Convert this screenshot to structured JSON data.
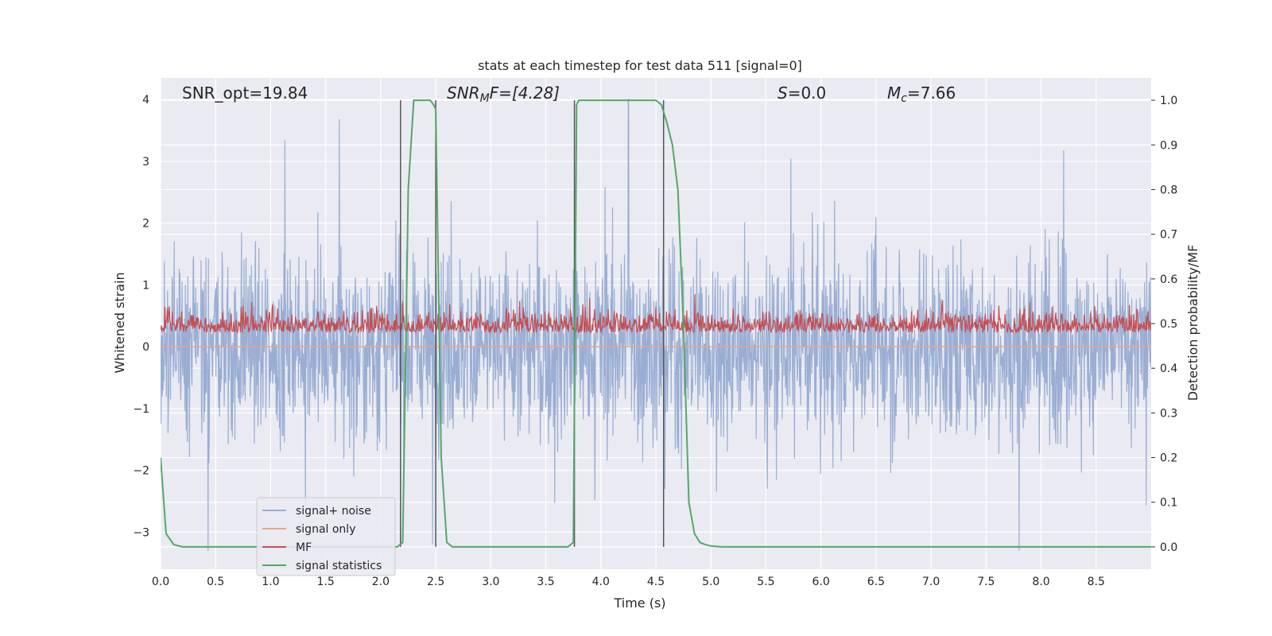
{
  "chart_data": {
    "type": "line",
    "title": "stats at each timestep for test data 511 [signal=0]",
    "xlabel": "Time (s)",
    "ylabel_left": "Whitened strain",
    "ylabel_right": "Detection probability/MF",
    "xlim": [
      0.0,
      9.0
    ],
    "ylim_left": [
      -3.6,
      4.35
    ],
    "ylim_right": [
      -0.05,
      1.05
    ],
    "x_ticks": [
      "0.0",
      "0.5",
      "1.0",
      "1.5",
      "2.0",
      "2.5",
      "3.0",
      "3.5",
      "4.0",
      "4.5",
      "5.0",
      "5.5",
      "6.0",
      "6.5",
      "7.0",
      "7.5",
      "8.0",
      "8.5"
    ],
    "y_left_ticks": [
      "4",
      "3",
      "2",
      "1",
      "0",
      "−1",
      "−2",
      "−3"
    ],
    "y_right_ticks": [
      "1.0",
      "0.9",
      "0.8",
      "0.7",
      "0.6",
      "0.5",
      "0.4",
      "0.3",
      "0.2",
      "0.1",
      "0.0"
    ],
    "grid": true,
    "annotations": {
      "snr_opt": "SNR_opt=19.84",
      "snr_mf_main": "SNR",
      "snr_mf_sub": "M",
      "snr_mf_rest": "F=[4.28]",
      "s_main": "S",
      "s_rest": "=0.0",
      "mc_main": "M",
      "mc_sub": "c",
      "mc_rest": "=7.66"
    },
    "vertical_lines_s": [
      2.18,
      2.5,
      3.76,
      4.57
    ],
    "series": [
      {
        "name": "signal+ noise",
        "axis": "left",
        "color": "#9aaed4",
        "description": "whitened noise, roughly within ±2.5, peaks near 4.0 at 4.25 s"
      },
      {
        "name": "signal only",
        "axis": "left",
        "color": "#e8a48a",
        "values_note": "flat near 0"
      },
      {
        "name": "MF",
        "axis": "right",
        "color": "#c44e52",
        "baseline": 0.48,
        "range": [
          0.48,
          0.6
        ]
      },
      {
        "name": "signal statistics",
        "axis": "right",
        "color": "#55a868",
        "x": [
          0.0,
          0.05,
          0.12,
          0.2,
          0.3,
          0.5,
          1.0,
          1.5,
          2.0,
          2.1,
          2.15,
          2.2,
          2.25,
          2.3,
          2.4,
          2.45,
          2.48,
          2.5,
          2.55,
          2.6,
          2.65,
          3.0,
          3.5,
          3.7,
          3.75,
          3.78,
          3.8,
          3.9,
          4.0,
          4.5,
          4.55,
          4.6,
          4.65,
          4.7,
          4.75,
          4.8,
          4.85,
          4.9,
          4.95,
          5.0,
          5.1,
          5.5,
          6.0,
          7.0,
          8.0,
          9.0
        ],
        "values": [
          0.2,
          0.03,
          0.005,
          0.0,
          0.0,
          0.0,
          0.0,
          0.0,
          0.0,
          0.0,
          0.0,
          0.01,
          0.8,
          1.0,
          1.0,
          1.0,
          0.99,
          0.98,
          0.2,
          0.01,
          0.0,
          0.0,
          0.0,
          0.0,
          0.01,
          0.99,
          1.0,
          1.0,
          1.0,
          1.0,
          0.99,
          0.95,
          0.9,
          0.8,
          0.5,
          0.1,
          0.03,
          0.01,
          0.005,
          0.002,
          0.0,
          0.0,
          0.0,
          0.0,
          0.0,
          0.0
        ]
      }
    ],
    "legend": {
      "placement": "lower-left",
      "entries": [
        {
          "label": "signal+ noise",
          "color": "#9aaed4"
        },
        {
          "label": "signal only",
          "color": "#e8a48a"
        },
        {
          "label": "MF",
          "color": "#c44e52"
        },
        {
          "label": "signal statistics",
          "color": "#55a868"
        }
      ]
    },
    "colors": {
      "background": "#eaeaf2",
      "grid": "#ffffff",
      "vline": "#555555"
    }
  }
}
